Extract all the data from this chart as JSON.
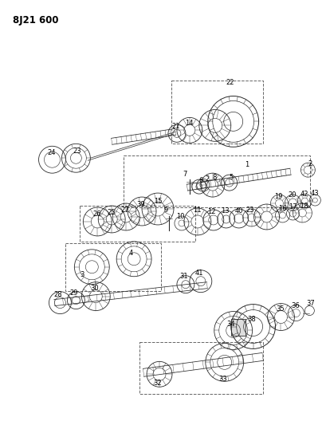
{
  "title": "8J21 600",
  "bg_color": "#ffffff",
  "lc": "#2a2a2a",
  "gray1": "#888888",
  "gray2": "#aaaaaa",
  "gray3": "#cccccc",
  "title_fontsize": 8.5,
  "label_fontsize": 6.0,
  "fig_width": 4.09,
  "fig_height": 5.33,
  "dpi": 100
}
